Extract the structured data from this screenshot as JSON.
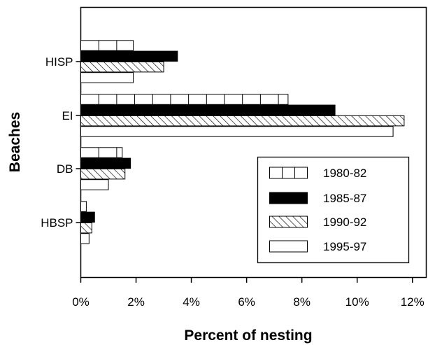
{
  "chart_data": {
    "type": "bar",
    "orientation": "horizontal",
    "title": "",
    "xlabel": "Percent of nesting",
    "ylabel": "Beaches",
    "categories": [
      "HISP",
      "EI",
      "DB",
      "HBSP"
    ],
    "series": [
      {
        "name": "1980-82",
        "values": [
          1.9,
          7.5,
          1.5,
          0.2
        ],
        "pattern": "segmented"
      },
      {
        "name": "1985-87",
        "values": [
          3.5,
          9.2,
          1.8,
          0.5
        ],
        "pattern": "solid"
      },
      {
        "name": "1990-92",
        "values": [
          3.0,
          11.7,
          1.6,
          0.4
        ],
        "pattern": "hatched"
      },
      {
        "name": "1995-97",
        "values": [
          1.9,
          11.3,
          1.0,
          0.3
        ],
        "pattern": "empty"
      }
    ],
    "xlim": [
      0,
      12.5
    ],
    "xticks": [
      0,
      2,
      4,
      6,
      8,
      10,
      12
    ],
    "xtick_labels": [
      "0%",
      "2%",
      "4%",
      "6%",
      "8%",
      "10%",
      "12%"
    ],
    "legend_placement": "center-right",
    "grid": false,
    "colors": {
      "fill_solid": "#000000",
      "fill_empty": "#ffffff",
      "stroke": "#000000"
    }
  }
}
